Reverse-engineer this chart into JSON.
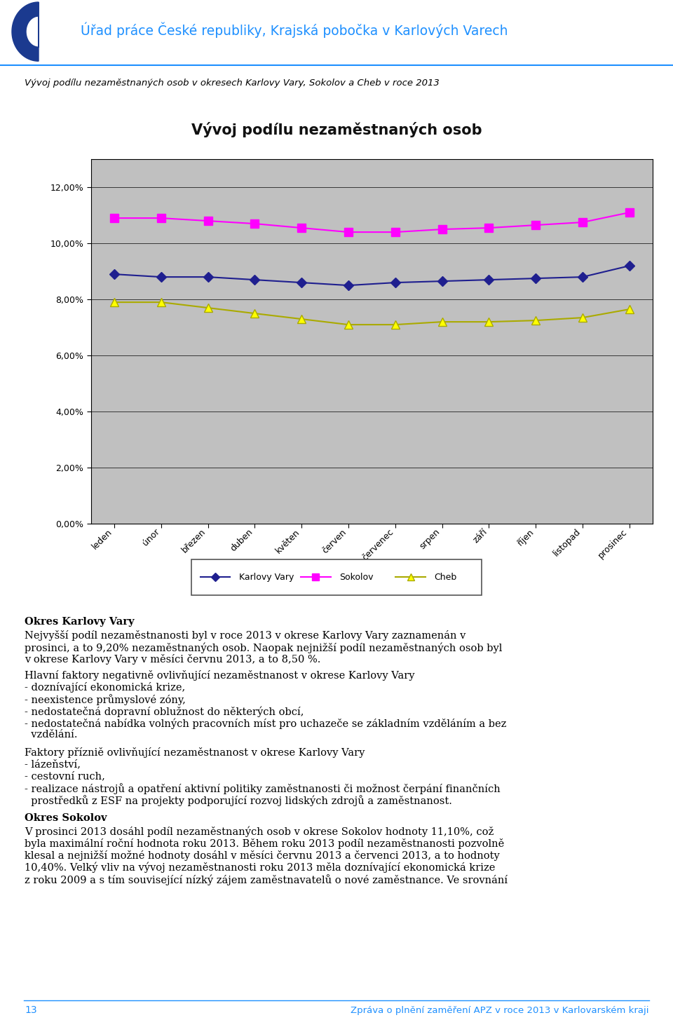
{
  "title_chart": "Vývoj podílu nezaměstnaných osob",
  "header_text": "Úřad práce České republiky, Krajská pobočka v Karlových Varech",
  "subtitle": "Vývoj podílu nezaměstnaných osob v okresech Karlovy Vary, Sokolov a Cheb v roce 2013",
  "months": [
    "leden",
    "únor",
    "březen",
    "duben",
    "květen",
    "červen",
    "červenec",
    "srpen",
    "září",
    "říjen",
    "listopad",
    "prosinec"
  ],
  "karlovy_vary": [
    8.9,
    8.8,
    8.8,
    8.7,
    8.6,
    8.5,
    8.6,
    8.65,
    8.7,
    8.75,
    8.8,
    9.2
  ],
  "sokolov": [
    10.9,
    10.9,
    10.8,
    10.7,
    10.55,
    10.4,
    10.4,
    10.5,
    10.55,
    10.65,
    10.75,
    11.1
  ],
  "cheb": [
    7.9,
    7.9,
    7.7,
    7.5,
    7.3,
    7.1,
    7.1,
    7.2,
    7.2,
    7.25,
    7.35,
    7.65
  ],
  "kv_color": "#1F1F8F",
  "sokolov_color": "#FF00FF",
  "cheb_color": "#FFFF00",
  "cheb_edge_color": "#AAAA00",
  "ytick_labels": [
    "0,00%",
    "2,00%",
    "4,00%",
    "6,00%",
    "8,00%",
    "10,00%",
    "12,00%"
  ],
  "ytick_vals": [
    0,
    2,
    4,
    6,
    8,
    10,
    12
  ],
  "ylim_max": 13,
  "chart_bg": "#C0C0C0",
  "outer_bg": "#B8D4E8",
  "legend_labels": [
    "Karlovy Vary",
    "Sokolov",
    "Cheb"
  ],
  "page_bg": "#FFFFFF",
  "text_color": "#000000",
  "header_color": "#1E90FF",
  "footer_text": "13",
  "footer_right": "Zpráva o plnění zaměření APZ v roce 2013 v Karlovarském kraji",
  "footer_color": "#1E90FF",
  "logo_color": "#1B3A8F",
  "para1_bold": "Okres Karlovy Vary",
  "para1_body": "Nejvyšší podíl nezaměstnanosti byl v roce 2013 v okrese Karlovy Vary zaznamenán v prosinci, a to 9,20% nezaměstnaných osob. Naopak nejnižší podíl nezaměstnaných osob byl v okrese Karlovy Vary v měsíci červnu 2013, a to 8,50 %.",
  "para2_body": "Hlavní faktory negativně ovlivňující nezaměstnanost v okrese Karlovy Vary\n- doznívající ekonomická krize,\n- neexistence průmyslové zóny,\n- nedostatečná dopravní oblužnost do některých obcí,\n- nedostatečná nabídka volných pracovních míst pro uchazeče se základním vzděláním a bez vzdělání.",
  "para3_body": "Faktory přízniě ovlivňující nezaměstnanost v okrese Karlovy Vary\n- lázeňství,\n- cestovní ruch,\n- realizace nástrojů a opatření aktivní politiky zaměstnanosti či možnost čerpání finančních prostředků z ESF na projekty podporující rozvoj lidských zdrojů a zaměstnanost.",
  "para4_bold": "Okres Sokolov",
  "para4_body": "V prosinci 2013 dosáhl podíl nezaměstnaných osob v okrese Sokolov hodnoty 11,10%, což byla maximální roční hodnota roku 2013. Během roku 2013 podíl nezaměstnanosti pozvolně klesal a nejnižší možné hodnoty dosáhl v měsíci červnu 2013 a červenci 2013, a to hodnoty 10,40%. Velký vliv na vývoj nezaměstnanosti roku 2013 měla doznívající ekonomická krize z roku 2009 a s tím související nízký zájem zaměstnavatelů o nové zaměstnance. Ve srovnání"
}
